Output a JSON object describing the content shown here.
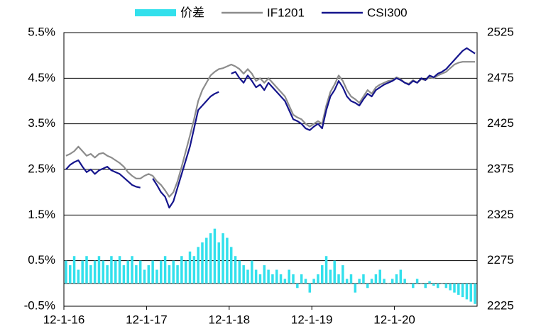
{
  "chart_data": {
    "type": "combo",
    "categories": [
      "12-1-16",
      null,
      null,
      null,
      null,
      null,
      null,
      null,
      null,
      null,
      null,
      null,
      null,
      null,
      null,
      null,
      null,
      null,
      null,
      null,
      "12-1-17",
      null,
      null,
      null,
      null,
      null,
      null,
      null,
      null,
      null,
      null,
      null,
      null,
      null,
      null,
      null,
      null,
      null,
      null,
      null,
      "12-1-18",
      null,
      null,
      null,
      null,
      null,
      null,
      null,
      null,
      null,
      null,
      null,
      null,
      null,
      null,
      null,
      null,
      null,
      null,
      null,
      "12-1-19",
      null,
      null,
      null,
      null,
      null,
      null,
      null,
      null,
      null,
      null,
      null,
      null,
      null,
      null,
      null,
      null,
      null,
      null,
      null,
      "12-1-20",
      null,
      null,
      null,
      null,
      null,
      null,
      null,
      null,
      null,
      null,
      null,
      null,
      null,
      null,
      null,
      null,
      null,
      null,
      null
    ],
    "ylim": [
      -0.5,
      5.5
    ],
    "yticks": [
      {
        "value": -0.5,
        "label": "-0.5%"
      },
      {
        "value": 0.5,
        "label": "0.5%"
      },
      {
        "value": 1.5,
        "label": "1.5%"
      },
      {
        "value": 2.5,
        "label": "2.5%"
      },
      {
        "value": 3.5,
        "label": "3.5%"
      },
      {
        "value": 4.5,
        "label": "4.5%"
      },
      {
        "value": 5.5,
        "label": "5.5%"
      }
    ],
    "y2lim": [
      2225,
      2525
    ],
    "y2ticks": [
      2225,
      2275,
      2325,
      2375,
      2425,
      2475,
      2525
    ],
    "grid": true,
    "legend": "top",
    "series": [
      {
        "name": "价差",
        "type": "bar",
        "color": "#33e0ec",
        "values": [
          0.5,
          0.4,
          0.6,
          0.3,
          0.5,
          0.6,
          0.4,
          0.5,
          0.6,
          0.5,
          0.4,
          0.6,
          0.5,
          0.6,
          0.4,
          0.5,
          0.6,
          0.4,
          0.5,
          0.3,
          0.4,
          0.5,
          0.3,
          0.5,
          0.6,
          0.4,
          0.5,
          0.4,
          0.6,
          0.5,
          0.7,
          0.6,
          0.8,
          0.9,
          1.0,
          1.1,
          1.2,
          0.9,
          1.1,
          1.0,
          0.8,
          0.6,
          0.5,
          0.4,
          0.3,
          0.5,
          0.3,
          0.2,
          0.4,
          0.3,
          0.2,
          0.3,
          0.2,
          0.1,
          0.3,
          0.2,
          -0.1,
          0.2,
          0.1,
          -0.2,
          0.1,
          0.2,
          0.4,
          0.6,
          0.3,
          0.5,
          0.2,
          0.4,
          0.1,
          0.2,
          -0.2,
          0.1,
          0.2,
          -0.1,
          0.1,
          0.2,
          0.3,
          0.1,
          0.0,
          0.1,
          0.2,
          0.3,
          0.1,
          0.0,
          -0.1,
          0.1,
          0.0,
          -0.1,
          0.05,
          -0.05,
          -0.1,
          0.0,
          -0.1,
          -0.15,
          -0.2,
          -0.25,
          -0.3,
          -0.35,
          -0.4,
          -0.45
        ]
      },
      {
        "name": "IF1201",
        "type": "line",
        "axis": "y2",
        "color": "#8c8c8c",
        "values": [
          2390,
          2392,
          2395,
          2400,
          2395,
          2390,
          2392,
          2388,
          2392,
          2393,
          2390,
          2388,
          2385,
          2382,
          2378,
          2372,
          2368,
          2365,
          2365,
          2368,
          2370,
          2368,
          2362,
          2358,
          2352,
          2345,
          2350,
          2362,
          2378,
          2395,
          2412,
          2430,
          2450,
          2462,
          2470,
          2478,
          2482,
          2485,
          2486,
          2488,
          2490,
          2488,
          2485,
          2480,
          2485,
          2480,
          2472,
          2475,
          2470,
          2475,
          2470,
          2465,
          2460,
          2455,
          2445,
          2435,
          2432,
          2430,
          2425,
          2422,
          2425,
          2428,
          2425,
          2445,
          2460,
          2468,
          2478,
          2472,
          2462,
          2455,
          2452,
          2448,
          2455,
          2462,
          2458,
          2465,
          2468,
          2470,
          2472,
          2473,
          2476,
          2474,
          2470,
          2469,
          2473,
          2470,
          2474,
          2473,
          2476,
          2475,
          2478,
          2480,
          2482,
          2486,
          2490,
          2492,
          2493,
          2493,
          2493,
          2493
        ]
      },
      {
        "name": "CSI300",
        "type": "line",
        "axis": "y2",
        "color": "#14148c",
        "values": [
          2375,
          2380,
          2383,
          2385,
          2378,
          2372,
          2375,
          2370,
          2374,
          2376,
          2378,
          2374,
          2372,
          2370,
          2366,
          2362,
          2358,
          2356,
          2355,
          null,
          null,
          2365,
          2358,
          2350,
          2345,
          2333,
          2340,
          2355,
          2370,
          2385,
          2400,
          2420,
          2440,
          2445,
          2450,
          2455,
          2458,
          2460,
          null,
          null,
          2480,
          2482,
          2475,
          2470,
          2478,
          2472,
          2465,
          2468,
          2462,
          2470,
          2465,
          2460,
          2455,
          2450,
          2440,
          2430,
          2428,
          2425,
          2420,
          2418,
          2422,
          2425,
          2420,
          2440,
          2455,
          2462,
          2472,
          2465,
          2455,
          2450,
          2448,
          2445,
          2452,
          2458,
          2455,
          2462,
          2465,
          2468,
          2470,
          2472,
          2475,
          2473,
          2470,
          2468,
          2472,
          2470,
          2475,
          2473,
          2478,
          2476,
          2480,
          2482,
          2485,
          2490,
          2495,
          2500,
          2505,
          2508,
          2505,
          2502
        ]
      }
    ]
  }
}
